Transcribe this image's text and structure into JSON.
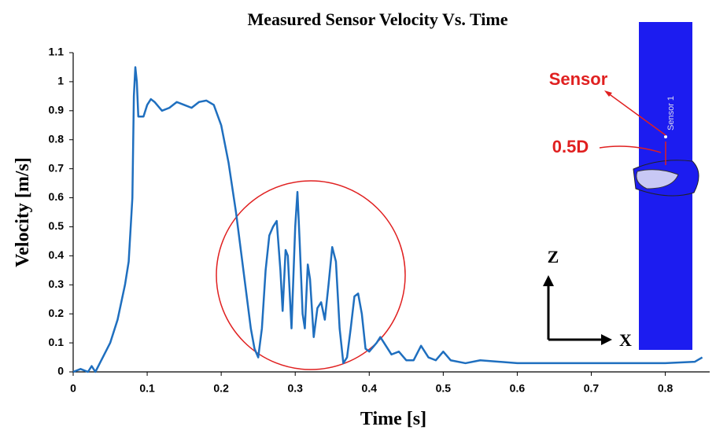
{
  "chart_data": {
    "type": "line",
    "title": "Measured Sensor Velocity Vs. Time",
    "x_label": "Time [s]",
    "y_label": "Velocity [m/s]",
    "x": [
      0,
      0.01,
      0.02,
      0.025,
      0.03,
      0.04,
      0.05,
      0.06,
      0.07,
      0.075,
      0.08,
      0.082,
      0.084,
      0.086,
      0.088,
      0.095,
      0.1,
      0.105,
      0.11,
      0.12,
      0.13,
      0.14,
      0.15,
      0.16,
      0.17,
      0.18,
      0.19,
      0.2,
      0.21,
      0.22,
      0.23,
      0.24,
      0.245,
      0.25,
      0.255,
      0.26,
      0.265,
      0.27,
      0.275,
      0.28,
      0.283,
      0.287,
      0.29,
      0.295,
      0.3,
      0.303,
      0.306,
      0.31,
      0.313,
      0.317,
      0.32,
      0.325,
      0.33,
      0.335,
      0.34,
      0.345,
      0.35,
      0.355,
      0.36,
      0.365,
      0.37,
      0.375,
      0.38,
      0.385,
      0.39,
      0.395,
      0.4,
      0.41,
      0.415,
      0.42,
      0.43,
      0.44,
      0.45,
      0.46,
      0.47,
      0.48,
      0.49,
      0.5,
      0.51,
      0.53,
      0.55,
      0.6,
      0.65,
      0.7,
      0.75,
      0.8,
      0.84,
      0.85
    ],
    "values": [
      0,
      0.01,
      0,
      0.02,
      0,
      0.05,
      0.1,
      0.18,
      0.3,
      0.38,
      0.6,
      0.95,
      1.05,
      1.0,
      0.88,
      0.88,
      0.92,
      0.94,
      0.93,
      0.9,
      0.91,
      0.93,
      0.92,
      0.91,
      0.93,
      0.935,
      0.92,
      0.85,
      0.72,
      0.55,
      0.35,
      0.15,
      0.08,
      0.05,
      0.15,
      0.35,
      0.47,
      0.5,
      0.52,
      0.35,
      0.21,
      0.42,
      0.4,
      0.15,
      0.5,
      0.62,
      0.45,
      0.2,
      0.15,
      0.37,
      0.32,
      0.12,
      0.22,
      0.24,
      0.18,
      0.3,
      0.43,
      0.38,
      0.15,
      0.03,
      0.05,
      0.15,
      0.26,
      0.27,
      0.2,
      0.08,
      0.07,
      0.1,
      0.12,
      0.1,
      0.06,
      0.07,
      0.04,
      0.04,
      0.09,
      0.05,
      0.04,
      0.07,
      0.04,
      0.03,
      0.04,
      0.03,
      0.03,
      0.03,
      0.03,
      0.03,
      0.035,
      0.05
    ],
    "color": "#1f6fbf",
    "xlim": [
      0,
      0.86
    ],
    "ylim": [
      0,
      1.1
    ],
    "xticks": [
      0,
      0.1,
      0.2,
      0.3,
      0.4,
      0.5,
      0.6,
      0.7,
      0.8
    ],
    "yticks": [
      0,
      0.1,
      0.2,
      0.3,
      0.4,
      0.5,
      0.6,
      0.7,
      0.8,
      0.9,
      1,
      1.1
    ],
    "annotations": {
      "sensor": "Sensor",
      "distance": "0.5D",
      "sensor_id": "Sensor 1",
      "z_axis": "Z",
      "x_axis": "X"
    }
  }
}
